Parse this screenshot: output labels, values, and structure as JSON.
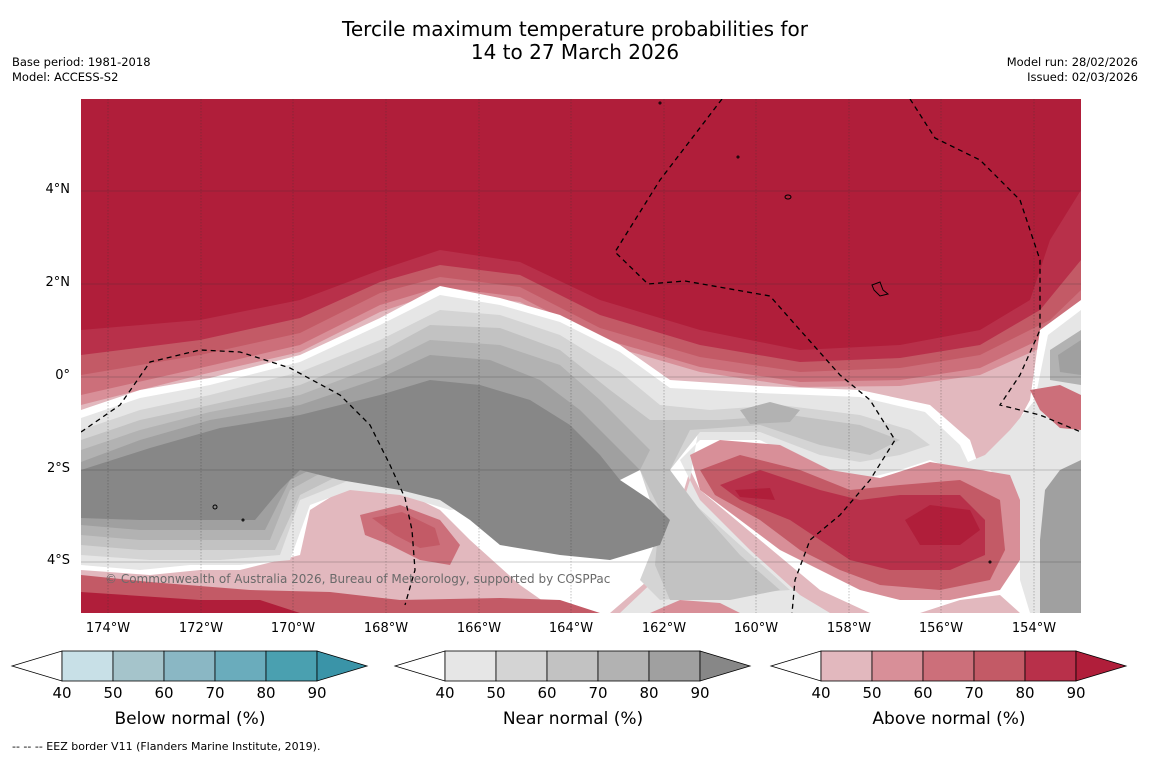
{
  "title": {
    "line1": "Tercile maximum temperature probabilities for",
    "line2": "14 to 27 March 2026"
  },
  "meta": {
    "base_period": "Base period: 1981-2018",
    "model": "Model: ACCESS-S2",
    "model_run": "Model run: 28/02/2026",
    "issued": "Issued: 02/03/2026"
  },
  "map": {
    "latitude_labels": [
      "4°N",
      "2°N",
      "0°",
      "2°S",
      "4°S"
    ],
    "longitude_labels": [
      "174°W",
      "172°W",
      "170°W",
      "168°W",
      "166°W",
      "164°W",
      "162°W",
      "160°W",
      "158°W",
      "156°W",
      "154°W"
    ],
    "copyright": "© Commonwealth of Australia 2026, Bureau of Meteorology, supported by COSPPac",
    "colors": {
      "above": [
        "#e2b8be",
        "#d88f98",
        "#cc6f7a",
        "#c35a66",
        "#b8304a",
        "#b01e3a"
      ],
      "near": [
        "#e6e6e6",
        "#d4d4d4",
        "#c2c2c2",
        "#b2b2b2",
        "#a0a0a0",
        "#878787"
      ],
      "below": [
        "#c8e0e7",
        "#a5c4cb",
        "#8ab7c4",
        "#6aacbc",
        "#4aa0b0",
        "#3a94a8"
      ]
    }
  },
  "colorbars": [
    {
      "label": "Below normal (%)",
      "ticks": [
        "40",
        "50",
        "60",
        "70",
        "80",
        "90"
      ]
    },
    {
      "label": "Near normal (%)",
      "ticks": [
        "40",
        "50",
        "60",
        "70",
        "80",
        "90"
      ]
    },
    {
      "label": "Above normal (%)",
      "ticks": [
        "40",
        "50",
        "60",
        "70",
        "80",
        "90"
      ]
    }
  ],
  "footer": "--  --  -- EEZ border V11 (Flanders Marine Institute, 2019)."
}
